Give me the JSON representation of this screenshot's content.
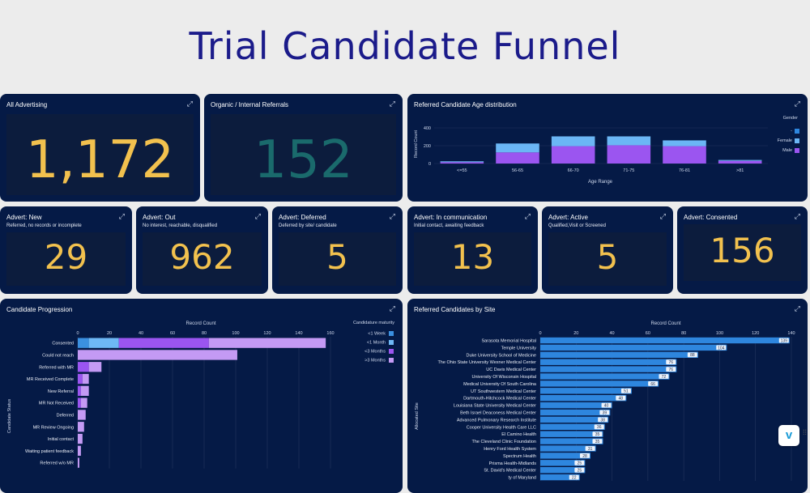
{
  "page": {
    "title": "Trial Candidate Funnel"
  },
  "kpis": [
    {
      "title": "All Advertising",
      "subtitle": "",
      "value": "1,172",
      "color": "#f2c14e"
    },
    {
      "title": "Organic / Internal Referrals",
      "subtitle": "",
      "value": "152",
      "color": "#1a6a6c"
    },
    {
      "title": "Advert: New",
      "subtitle": "Referred, no records or incomplete",
      "value": "29",
      "color": "#f2c14e"
    },
    {
      "title": "Advert: Out",
      "subtitle": "No interest, reachable, disqualified",
      "value": "962",
      "color": "#f2c14e"
    },
    {
      "title": "Advert: Deferred",
      "subtitle": "Deferred by site/ candidate",
      "value": "5",
      "color": "#f2c14e"
    },
    {
      "title": "Advert: In communication",
      "subtitle": "Initial contact, awaiting feedback",
      "value": "13",
      "color": "#f2c14e"
    },
    {
      "title": "Advert: Active",
      "subtitle": "Qualified,Visit or Screened",
      "value": "5",
      "color": "#f2c14e"
    },
    {
      "title": "Advert: Consented",
      "subtitle": "",
      "value": "156",
      "color": "#f2c14e"
    }
  ],
  "age_chart": {
    "title": "Referred Candidate Age distribution",
    "chart_data": {
      "type": "bar",
      "stacked": true,
      "categories": [
        "<=55",
        "56-65",
        "66-70",
        "71-75",
        "76-81",
        ">81"
      ],
      "series": [
        {
          "name": "-",
          "color": "#2e86de",
          "values": [
            0,
            0,
            0,
            0,
            0,
            0
          ]
        },
        {
          "name": "Female",
          "color": "#6bb6f5",
          "values": [
            10,
            100,
            110,
            100,
            65,
            10
          ]
        },
        {
          "name": "Male",
          "color": "#9b55f0",
          "values": [
            15,
            125,
            195,
            205,
            195,
            30
          ]
        }
      ],
      "xlabel": "Age Range",
      "ylabel": "Record Count",
      "yticks": [
        "0",
        "200",
        "400"
      ],
      "ylim": [
        0,
        400
      ],
      "legend_title": "Gender",
      "legend_position": "top-right"
    }
  },
  "progression_chart": {
    "title": "Candidate Progression",
    "chart_data": {
      "type": "bar",
      "orientation": "horizontal",
      "stacked": true,
      "categories": [
        "Consented",
        "Could not reach",
        "Referred with MR",
        "MR Received Complete",
        "New Referral",
        "MR Not Received",
        "Deferred",
        "MR Review Ongoing",
        "Initial contact",
        "Waiting patient feedback",
        "Referred w/o MR"
      ],
      "series": [
        {
          "name": "<1 Week",
          "color": "#3b90e0",
          "values": [
            7,
            0,
            0,
            0,
            0,
            0,
            0,
            0,
            0,
            0,
            0
          ]
        },
        {
          "name": "<1 Month",
          "color": "#6eb8f5",
          "values": [
            19,
            0,
            0,
            0,
            0,
            0,
            0,
            0,
            0,
            0,
            0
          ]
        },
        {
          "name": "<3 Months",
          "color": "#9b55f0",
          "values": [
            57,
            0,
            7,
            3,
            2,
            2,
            0,
            0,
            0,
            0,
            0
          ]
        },
        {
          "name": ">3 Months",
          "color": "#c49af4",
          "values": [
            74,
            101,
            8,
            4,
            5,
            4,
            5,
            4,
            3,
            2,
            1
          ]
        }
      ],
      "xlabel": "Record Count",
      "ylabel": "Candidate Status",
      "xticks": [
        "0",
        "20",
        "40",
        "60",
        "80",
        "100",
        "120",
        "140",
        "160"
      ],
      "xlim": [
        0,
        160
      ],
      "legend_title": "Candidature maturity",
      "legend_position": "top-right"
    }
  },
  "site_chart": {
    "title": "Referred Candidates by Site",
    "chart_data": {
      "type": "bar",
      "orientation": "horizontal",
      "categories": [
        "Sarasota Memorial Hospital",
        "Temple University",
        "Duke University School of Medicine",
        "The Ohio State University Wexner Medical Center",
        "UC Davis Medical Center",
        "University Of Wisconsin Hospital",
        "Medical University Of South Carolina",
        "UT Southwestern Medical Center",
        "Dartmouth-Hitchcock Medical Center",
        "Louisiana State University Medical Center",
        "Beth Israel Deaconess Medical Center",
        "Advanced Pulmonary Research Institute",
        "Cooper University Health Care LLC",
        "El Camino Health",
        "The Cleveland Clinic Foundation",
        "Henry Ford Health System",
        "Spectrum Health",
        "Prisma Health-Midlands",
        "St. David's Medical Center",
        "ty of Maryland"
      ],
      "values": [
        139,
        104,
        88,
        76,
        76,
        72,
        66,
        51,
        48,
        40,
        39,
        38,
        36,
        35,
        35,
        31,
        28,
        25,
        25,
        22
      ],
      "labels": [
        "139",
        "104",
        "88",
        "76",
        "76",
        "72",
        "66",
        "51",
        "48",
        "40",
        "39",
        "38",
        "36",
        "35",
        "35",
        "31",
        "28",
        "25",
        "25",
        "22"
      ],
      "xlabel": "Record Count",
      "ylabel": "Allocated Site",
      "xticks": [
        "0",
        "20",
        "40",
        "60",
        "80",
        "100",
        "120",
        "140"
      ],
      "xlim": [
        0,
        140
      ],
      "color": "#2e86de"
    }
  },
  "icons": {
    "expand": "expand-icon",
    "vimeo": "vimeo-logo",
    "grip": "drag-handle-icon"
  },
  "vimeo": {
    "letter": "v"
  }
}
